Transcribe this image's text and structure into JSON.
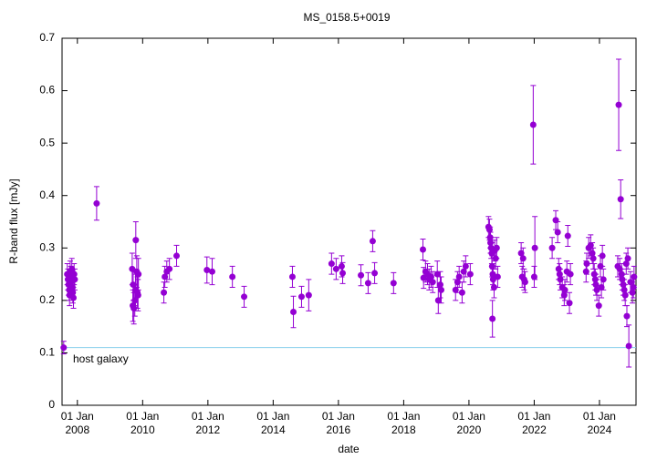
{
  "chart_data": {
    "type": "scatter",
    "title": "MS_0158.5+0019",
    "x_label": "date",
    "y_label": "R-band flux [mJy]",
    "color": "#9400d3",
    "x": [
      2007.58,
      2007.69,
      2007.71,
      2007.73,
      2007.75,
      2007.76,
      2007.78,
      2007.8,
      2007.81,
      2007.83,
      2007.85,
      2007.86,
      2007.88,
      2007.9,
      2007.92,
      2008.59,
      2009.68,
      2009.7,
      2009.71,
      2009.73,
      2009.76,
      2009.78,
      2009.79,
      2009.82,
      2009.84,
      2009.86,
      2009.87,
      2010.65,
      2010.68,
      2010.74,
      2010.82,
      2011.04,
      2011.97,
      2012.13,
      2012.75,
      2013.11,
      2014.59,
      2014.62,
      2014.87,
      2015.09,
      2015.79,
      2015.93,
      2016.1,
      2016.13,
      2016.69,
      2016.91,
      2017.05,
      2017.11,
      2017.69,
      2018.59,
      2018.61,
      2018.67,
      2018.73,
      2018.78,
      2018.84,
      2018.89,
      2019.03,
      2019.06,
      2019.12,
      2019.15,
      2019.59,
      2019.65,
      2019.7,
      2019.79,
      2019.84,
      2019.9,
      2020.04,
      2020.6,
      2020.63,
      2020.65,
      2020.66,
      2020.68,
      2020.7,
      2020.71,
      2020.73,
      2020.74,
      2020.77,
      2020.72,
      2020.79,
      2020.82,
      2020.85,
      2020.88,
      2021.6,
      2021.63,
      2021.66,
      2021.69,
      2021.72,
      2021.97,
      2022.0,
      2022.02,
      2022.55,
      2022.66,
      2022.72,
      2022.75,
      2022.78,
      2022.8,
      2022.86,
      2022.92,
      2022.94,
      2023.0,
      2023.03,
      2023.08,
      2023.11,
      2023.59,
      2023.61,
      2023.67,
      2023.73,
      2023.78,
      2023.81,
      2023.84,
      2023.87,
      2023.89,
      2023.92,
      2023.98,
      2024.03,
      2024.06,
      2024.09,
      2024.12,
      2024.56,
      2024.59,
      2024.62,
      2024.65,
      2024.68,
      2024.7,
      2024.73,
      2024.76,
      2024.79,
      2024.82,
      2024.84,
      2024.87,
      2024.9,
      2024.95,
      2025.01,
      2025.04,
      2025.06
    ],
    "values": [
      0.11,
      0.25,
      0.24,
      0.23,
      0.22,
      0.21,
      0.255,
      0.245,
      0.235,
      0.26,
      0.225,
      0.215,
      0.205,
      0.25,
      0.24,
      0.385,
      0.26,
      0.19,
      0.23,
      0.185,
      0.2,
      0.22,
      0.315,
      0.255,
      0.215,
      0.21,
      0.25,
      0.215,
      0.245,
      0.255,
      0.26,
      0.285,
      0.258,
      0.255,
      0.245,
      0.207,
      0.245,
      0.178,
      0.207,
      0.21,
      0.27,
      0.26,
      0.265,
      0.252,
      0.248,
      0.233,
      0.313,
      0.252,
      0.233,
      0.297,
      0.243,
      0.255,
      0.25,
      0.24,
      0.245,
      0.235,
      0.25,
      0.2,
      0.23,
      0.22,
      0.22,
      0.235,
      0.245,
      0.215,
      0.255,
      0.265,
      0.25,
      0.34,
      0.335,
      0.32,
      0.31,
      0.3,
      0.29,
      0.265,
      0.25,
      0.24,
      0.225,
      0.165,
      0.295,
      0.28,
      0.3,
      0.245,
      0.29,
      0.245,
      0.28,
      0.24,
      0.235,
      0.535,
      0.245,
      0.3,
      0.3,
      0.353,
      0.33,
      0.26,
      0.25,
      0.24,
      0.225,
      0.21,
      0.22,
      0.255,
      0.323,
      0.195,
      0.25,
      0.255,
      0.27,
      0.3,
      0.305,
      0.29,
      0.28,
      0.25,
      0.24,
      0.23,
      0.22,
      0.19,
      0.265,
      0.225,
      0.285,
      0.24,
      0.265,
      0.573,
      0.26,
      0.393,
      0.25,
      0.24,
      0.23,
      0.22,
      0.21,
      0.27,
      0.17,
      0.28,
      0.113,
      0.235,
      0.215,
      0.225,
      0.245
    ],
    "errors": [
      0.012,
      0.02,
      0.02,
      0.02,
      0.02,
      0.02,
      0.02,
      0.02,
      0.02,
      0.02,
      0.02,
      0.02,
      0.02,
      0.02,
      0.02,
      0.032,
      0.03,
      0.03,
      0.03,
      0.03,
      0.03,
      0.03,
      0.035,
      0.03,
      0.03,
      0.03,
      0.03,
      0.02,
      0.02,
      0.02,
      0.02,
      0.02,
      0.025,
      0.025,
      0.02,
      0.02,
      0.02,
      0.03,
      0.02,
      0.03,
      0.02,
      0.02,
      0.02,
      0.02,
      0.02,
      0.02,
      0.02,
      0.02,
      0.02,
      0.02,
      0.02,
      0.02,
      0.02,
      0.02,
      0.02,
      0.02,
      0.025,
      0.025,
      0.025,
      0.025,
      0.02,
      0.02,
      0.02,
      0.02,
      0.02,
      0.02,
      0.02,
      0.02,
      0.02,
      0.02,
      0.02,
      0.02,
      0.02,
      0.02,
      0.02,
      0.02,
      0.02,
      0.035,
      0.02,
      0.02,
      0.02,
      0.02,
      0.02,
      0.02,
      0.02,
      0.02,
      0.02,
      0.075,
      0.02,
      0.06,
      0.02,
      0.018,
      0.02,
      0.02,
      0.02,
      0.02,
      0.02,
      0.02,
      0.02,
      0.02,
      0.02,
      0.02,
      0.02,
      0.02,
      0.02,
      0.02,
      0.02,
      0.02,
      0.02,
      0.02,
      0.02,
      0.02,
      0.02,
      0.02,
      0.02,
      0.02,
      0.02,
      0.02,
      0.02,
      0.087,
      0.02,
      0.037,
      0.02,
      0.02,
      0.02,
      0.02,
      0.02,
      0.02,
      0.02,
      0.02,
      0.04,
      0.02,
      0.02,
      0.02,
      0.02
    ],
    "xlim": [
      2007.53,
      2025.12
    ],
    "xticks": [
      {
        "value": 2008,
        "label": "01 Jan\n2008"
      },
      {
        "value": 2010,
        "label": "01 Jan\n2010"
      },
      {
        "value": 2012,
        "label": "01 Jan\n2012"
      },
      {
        "value": 2014,
        "label": "01 Jan\n2014"
      },
      {
        "value": 2016,
        "label": "01 Jan\n2016"
      },
      {
        "value": 2018,
        "label": "01 Jan\n2018"
      },
      {
        "value": 2020,
        "label": "01 Jan\n2020"
      },
      {
        "value": 2022,
        "label": "01 Jan\n2022"
      },
      {
        "value": 2024,
        "label": "01 Jan\n2024"
      }
    ],
    "ylim": [
      0,
      0.7
    ],
    "yticks": [
      0,
      0.1,
      0.2,
      0.3,
      0.4,
      0.5,
      0.6,
      0.7
    ],
    "reference_line": {
      "label": "host galaxy",
      "value": 0.11,
      "color": "#87ceeb"
    }
  }
}
